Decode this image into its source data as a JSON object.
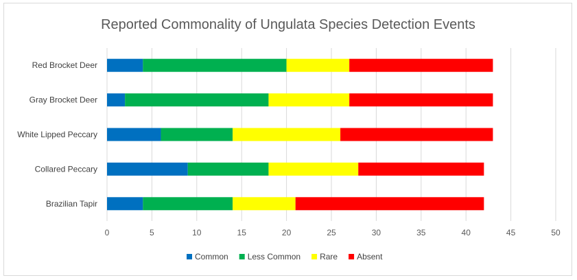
{
  "chart_data": {
    "type": "bar",
    "orientation": "horizontal",
    "stacked": true,
    "title": "Reported Commonality of Ungulata Species Detection Events",
    "xlabel": "",
    "ylabel": "",
    "xlim": [
      0,
      50
    ],
    "x_ticks": [
      0,
      5,
      10,
      15,
      20,
      25,
      30,
      35,
      40,
      45,
      50
    ],
    "grid": "vertical",
    "legend_position": "bottom",
    "categories": [
      "Red Brocket Deer",
      "Gray Brocket Deer",
      "White Lipped Peccary",
      "Collared Peccary",
      "Brazilian Tapir"
    ],
    "series": [
      {
        "name": "Common",
        "color": "#0070C0",
        "values": [
          4,
          2,
          6,
          9,
          4
        ]
      },
      {
        "name": "Less Common",
        "color": "#00B050",
        "values": [
          16,
          16,
          8,
          9,
          10
        ]
      },
      {
        "name": "Rare",
        "color": "#FFFF00",
        "values": [
          7,
          9,
          12,
          10,
          7
        ]
      },
      {
        "name": "Absent",
        "color": "#FF0000",
        "values": [
          16,
          16,
          17,
          14,
          21
        ]
      }
    ]
  }
}
